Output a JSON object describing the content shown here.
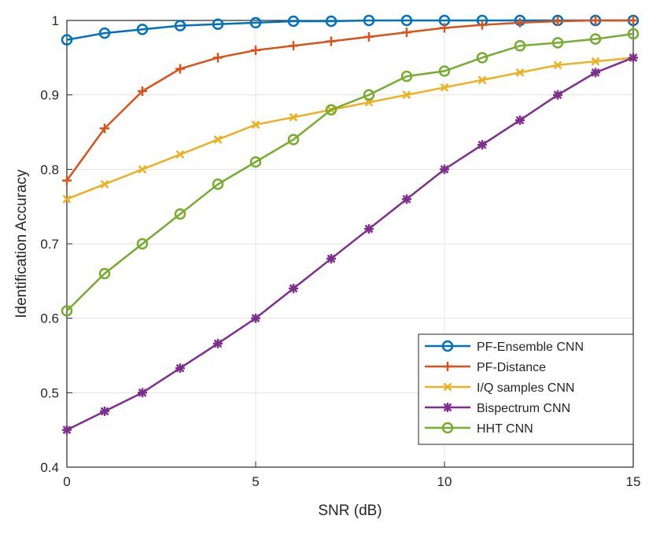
{
  "chart_data": {
    "type": "line",
    "title": "",
    "xlabel": "SNR (dB)",
    "ylabel": "Identification Accuracy",
    "xlim": [
      0,
      15
    ],
    "ylim": [
      0.4,
      1
    ],
    "xticks": [
      0,
      5,
      10,
      15
    ],
    "yticks": [
      0.4,
      0.5,
      0.6,
      0.7,
      0.8,
      0.9,
      1
    ],
    "xtick_labels": [
      "0",
      "5",
      "10",
      "15"
    ],
    "ytick_labels": [
      "0.4",
      "0.5",
      "0.6",
      "0.7",
      "0.8",
      "0.9",
      "1"
    ],
    "grid": true,
    "legend_position": "bottom-right",
    "x": [
      0,
      1,
      2,
      3,
      4,
      5,
      6,
      7,
      8,
      9,
      10,
      11,
      12,
      13,
      14,
      15
    ],
    "series": [
      {
        "name": "PF-Ensemble CNN",
        "color": "#0072BD",
        "marker": "circle",
        "values": [
          0.974,
          0.983,
          0.988,
          0.993,
          0.995,
          0.997,
          0.999,
          0.999,
          1,
          1,
          1,
          1,
          1,
          1,
          1,
          1
        ]
      },
      {
        "name": "PF-Distance",
        "color": "#D95319",
        "marker": "plus",
        "values": [
          0.785,
          0.855,
          0.905,
          0.935,
          0.95,
          0.96,
          0.966,
          0.972,
          0.978,
          0.984,
          0.99,
          0.994,
          0.997,
          0.999,
          1,
          1
        ]
      },
      {
        "name": "I/Q samples CNN",
        "color": "#EDB120",
        "marker": "cross",
        "values": [
          0.76,
          0.78,
          0.8,
          0.82,
          0.84,
          0.86,
          0.87,
          0.88,
          0.89,
          0.9,
          0.91,
          0.92,
          0.93,
          0.94,
          0.945,
          0.95
        ]
      },
      {
        "name": "Bispectrum CNN",
        "color": "#7E2F8E",
        "marker": "asterisk",
        "values": [
          0.45,
          0.475,
          0.5,
          0.533,
          0.566,
          0.6,
          0.64,
          0.68,
          0.72,
          0.76,
          0.8,
          0.833,
          0.866,
          0.9,
          0.93,
          0.95
        ]
      },
      {
        "name": "HHT CNN",
        "color": "#77AC30",
        "marker": "circle",
        "values": [
          0.61,
          0.66,
          0.7,
          0.74,
          0.78,
          0.81,
          0.84,
          0.88,
          0.9,
          0.925,
          0.932,
          0.95,
          0.966,
          0.97,
          0.975,
          0.982
        ]
      }
    ]
  }
}
